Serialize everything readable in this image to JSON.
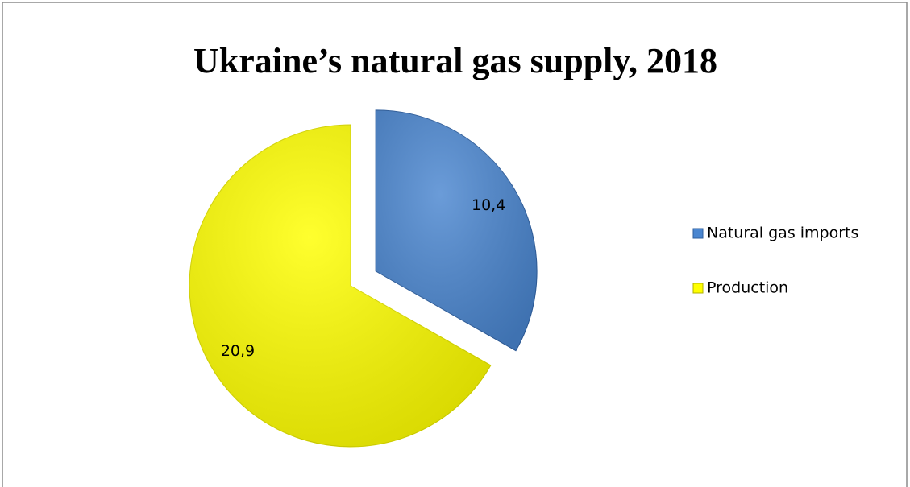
{
  "chart_data": {
    "type": "pie",
    "title": "Ukraine’s natural gas supply, 2018",
    "categories": [
      "Natural gas imports",
      "Production"
    ],
    "values": [
      10.4,
      20.9
    ],
    "value_labels": [
      "10,4",
      "20,9"
    ],
    "colors": [
      "#4a86d0",
      "#ffff00"
    ],
    "explode": [
      true,
      false
    ],
    "legend": "right"
  }
}
